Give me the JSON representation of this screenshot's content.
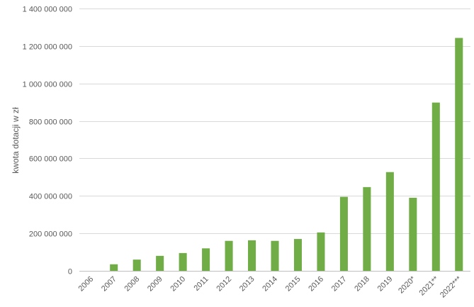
{
  "chart_data": {
    "type": "bar",
    "categories": [
      "2006",
      "2007",
      "2008",
      "2009",
      "2010",
      "2011",
      "2012",
      "2013",
      "2014",
      "2015",
      "2016",
      "2017",
      "2018",
      "2019",
      "2020*",
      "2021**",
      "2022***"
    ],
    "values": [
      0,
      35000000,
      60000000,
      80000000,
      95000000,
      120000000,
      160000000,
      163000000,
      160000000,
      170000000,
      205000000,
      395000000,
      447000000,
      527000000,
      390000000,
      898000000,
      1243000000
    ],
    "title": "",
    "xlabel": "",
    "ylabel": "kwota dotacji w zł",
    "ylim": [
      0,
      1400000000
    ],
    "yticks": [
      0,
      200000000,
      400000000,
      600000000,
      800000000,
      1000000000,
      1200000000,
      1400000000
    ],
    "ytick_labels": [
      "0",
      "200 000 000",
      "400 000 000",
      "600 000 000",
      "800 000 000",
      "1 000 000 000",
      "1 200 000 000",
      "1 400 000 000"
    ],
    "bar_color": "#70ad47",
    "grid": true,
    "legend": "none"
  }
}
